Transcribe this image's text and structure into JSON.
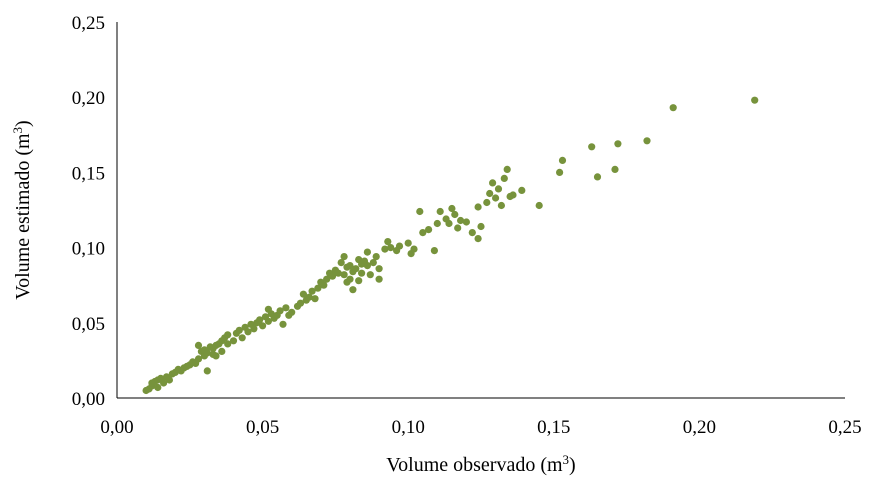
{
  "chart_data": {
    "type": "scatter",
    "xlabel": "Volume observado (m³)",
    "ylabel": "Volume estimado (m³)",
    "xlim": [
      0,
      0.25
    ],
    "ylim": [
      0,
      0.25
    ],
    "x_ticks": [
      "0,00",
      "0,05",
      "0,10",
      "0,15",
      "0,20",
      "0,25"
    ],
    "y_ticks": [
      "0,00",
      "0,05",
      "0,10",
      "0,15",
      "0,20",
      "0,25"
    ],
    "grid": false,
    "legend": "none",
    "marker_color": "#77933C",
    "series": [
      {
        "points": [
          [
            0.01,
            0.005
          ],
          [
            0.011,
            0.006
          ],
          [
            0.012,
            0.008
          ],
          [
            0.012,
            0.01
          ],
          [
            0.013,
            0.011
          ],
          [
            0.014,
            0.007
          ],
          [
            0.014,
            0.012
          ],
          [
            0.015,
            0.013
          ],
          [
            0.016,
            0.01
          ],
          [
            0.017,
            0.014
          ],
          [
            0.018,
            0.012
          ],
          [
            0.019,
            0.016
          ],
          [
            0.02,
            0.017
          ],
          [
            0.021,
            0.019
          ],
          [
            0.022,
            0.018
          ],
          [
            0.023,
            0.02
          ],
          [
            0.024,
            0.021
          ],
          [
            0.025,
            0.022
          ],
          [
            0.026,
            0.024
          ],
          [
            0.027,
            0.023
          ],
          [
            0.028,
            0.026
          ],
          [
            0.028,
            0.035
          ],
          [
            0.029,
            0.031
          ],
          [
            0.03,
            0.028
          ],
          [
            0.03,
            0.032
          ],
          [
            0.031,
            0.03
          ],
          [
            0.031,
            0.018
          ],
          [
            0.032,
            0.034
          ],
          [
            0.033,
            0.029
          ],
          [
            0.033,
            0.033
          ],
          [
            0.034,
            0.035
          ],
          [
            0.034,
            0.028
          ],
          [
            0.035,
            0.036
          ],
          [
            0.036,
            0.031
          ],
          [
            0.036,
            0.038
          ],
          [
            0.037,
            0.04
          ],
          [
            0.038,
            0.042
          ],
          [
            0.038,
            0.036
          ],
          [
            0.04,
            0.038
          ],
          [
            0.041,
            0.043
          ],
          [
            0.042,
            0.045
          ],
          [
            0.043,
            0.04
          ],
          [
            0.044,
            0.047
          ],
          [
            0.045,
            0.044
          ],
          [
            0.046,
            0.049
          ],
          [
            0.047,
            0.046
          ],
          [
            0.048,
            0.05
          ],
          [
            0.049,
            0.052
          ],
          [
            0.05,
            0.048
          ],
          [
            0.051,
            0.054
          ],
          [
            0.052,
            0.051
          ],
          [
            0.052,
            0.059
          ],
          [
            0.053,
            0.056
          ],
          [
            0.054,
            0.053
          ],
          [
            0.055,
            0.055
          ],
          [
            0.056,
            0.058
          ],
          [
            0.057,
            0.049
          ],
          [
            0.058,
            0.06
          ],
          [
            0.059,
            0.055
          ],
          [
            0.06,
            0.057
          ],
          [
            0.062,
            0.061
          ],
          [
            0.063,
            0.063
          ],
          [
            0.064,
            0.069
          ],
          [
            0.065,
            0.065
          ],
          [
            0.066,
            0.067
          ],
          [
            0.067,
            0.071
          ],
          [
            0.068,
            0.066
          ],
          [
            0.069,
            0.073
          ],
          [
            0.07,
            0.077
          ],
          [
            0.071,
            0.075
          ],
          [
            0.072,
            0.079
          ],
          [
            0.073,
            0.083
          ],
          [
            0.074,
            0.081
          ],
          [
            0.075,
            0.085
          ],
          [
            0.076,
            0.083
          ],
          [
            0.077,
            0.09
          ],
          [
            0.078,
            0.094
          ],
          [
            0.078,
            0.082
          ],
          [
            0.079,
            0.087
          ],
          [
            0.079,
            0.077
          ],
          [
            0.08,
            0.088
          ],
          [
            0.08,
            0.079
          ],
          [
            0.081,
            0.084
          ],
          [
            0.081,
            0.072
          ],
          [
            0.082,
            0.086
          ],
          [
            0.083,
            0.092
          ],
          [
            0.083,
            0.078
          ],
          [
            0.084,
            0.089
          ],
          [
            0.084,
            0.083
          ],
          [
            0.085,
            0.091
          ],
          [
            0.086,
            0.088
          ],
          [
            0.086,
            0.097
          ],
          [
            0.087,
            0.082
          ],
          [
            0.088,
            0.09
          ],
          [
            0.089,
            0.094
          ],
          [
            0.09,
            0.086
          ],
          [
            0.09,
            0.079
          ],
          [
            0.092,
            0.099
          ],
          [
            0.093,
            0.104
          ],
          [
            0.094,
            0.1
          ],
          [
            0.096,
            0.098
          ],
          [
            0.097,
            0.101
          ],
          [
            0.1,
            0.103
          ],
          [
            0.101,
            0.096
          ],
          [
            0.102,
            0.099
          ],
          [
            0.104,
            0.124
          ],
          [
            0.105,
            0.11
          ],
          [
            0.107,
            0.112
          ],
          [
            0.109,
            0.098
          ],
          [
            0.11,
            0.116
          ],
          [
            0.111,
            0.124
          ],
          [
            0.113,
            0.119
          ],
          [
            0.114,
            0.116
          ],
          [
            0.115,
            0.126
          ],
          [
            0.116,
            0.122
          ],
          [
            0.117,
            0.113
          ],
          [
            0.118,
            0.118
          ],
          [
            0.12,
            0.117
          ],
          [
            0.122,
            0.11
          ],
          [
            0.124,
            0.127
          ],
          [
            0.124,
            0.106
          ],
          [
            0.125,
            0.114
          ],
          [
            0.127,
            0.13
          ],
          [
            0.128,
            0.136
          ],
          [
            0.129,
            0.143
          ],
          [
            0.13,
            0.133
          ],
          [
            0.131,
            0.139
          ],
          [
            0.132,
            0.128
          ],
          [
            0.133,
            0.146
          ],
          [
            0.134,
            0.152
          ],
          [
            0.135,
            0.134
          ],
          [
            0.136,
            0.135
          ],
          [
            0.139,
            0.138
          ],
          [
            0.145,
            0.128
          ],
          [
            0.152,
            0.15
          ],
          [
            0.153,
            0.158
          ],
          [
            0.163,
            0.167
          ],
          [
            0.165,
            0.147
          ],
          [
            0.171,
            0.152
          ],
          [
            0.172,
            0.169
          ],
          [
            0.182,
            0.171
          ],
          [
            0.191,
            0.193
          ],
          [
            0.219,
            0.198
          ]
        ]
      }
    ]
  }
}
